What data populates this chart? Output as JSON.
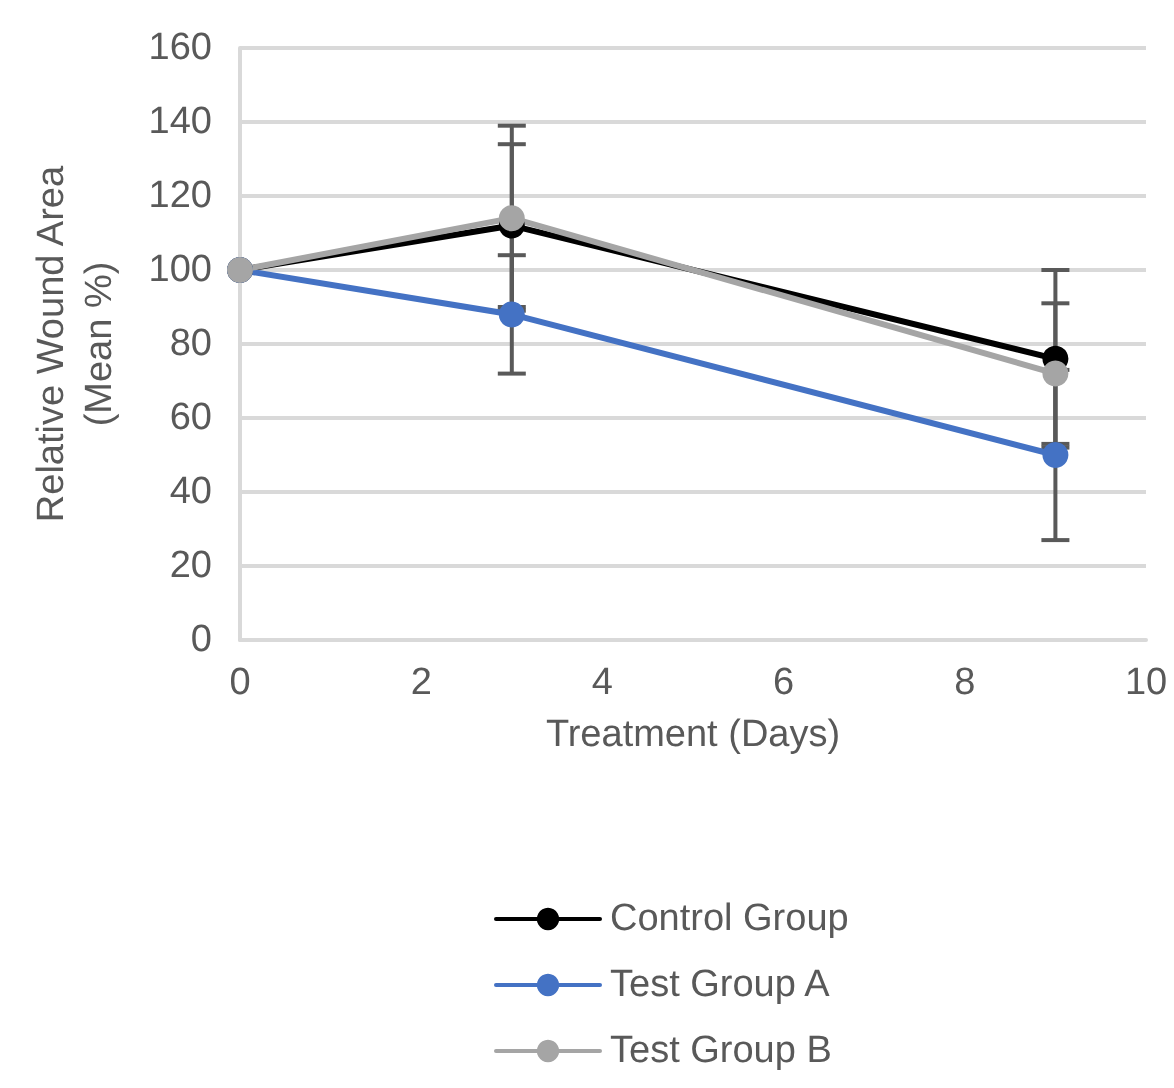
{
  "chart_data": {
    "type": "line",
    "xlabel": "Treatment (Days)",
    "ylabel": "Relative Wound Area\n(Mean %)",
    "x": [
      0,
      3,
      9
    ],
    "series": [
      {
        "name": "Control Group",
        "color": "#000000",
        "values": [
          100,
          112,
          76
        ],
        "errors": [
          null,
          22,
          24
        ]
      },
      {
        "name": "Test Group A",
        "color": "#4472c4",
        "values": [
          100,
          88,
          50
        ],
        "errors": [
          null,
          16,
          23
        ]
      },
      {
        "name": "Test Group B",
        "color": "#a5a5a5",
        "values": [
          100,
          114,
          72
        ],
        "errors": [
          null,
          25,
          19
        ]
      }
    ],
    "xlim": [
      0,
      10
    ],
    "xticks": [
      0,
      2,
      4,
      6,
      8,
      10
    ],
    "ylim": [
      0,
      160
    ],
    "yticks": [
      0,
      20,
      40,
      60,
      80,
      100,
      120,
      140,
      160
    ],
    "grid": "y",
    "legend": "bottom",
    "marker": "circle",
    "line_style": "solid"
  }
}
